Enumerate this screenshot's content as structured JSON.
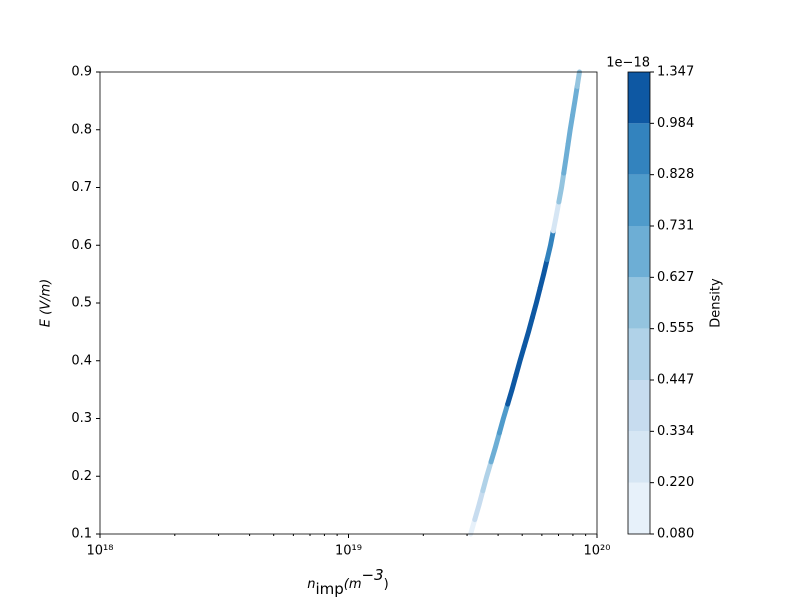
{
  "chart_data": {
    "type": "contour",
    "xlabel": [
      "n",
      "imp",
      "(m",
      "−3",
      ")"
    ],
    "ylabel": "E (V/m)",
    "xscale": "log",
    "xlim": [
      1e+18,
      1e+20
    ],
    "xticks": [
      {
        "value": 1e+18,
        "label": "10¹⁸"
      },
      {
        "value": 1e+19,
        "label": "10¹⁹"
      },
      {
        "value": 1e+20,
        "label": "10²⁰"
      }
    ],
    "ylim": [
      0.1,
      0.9
    ],
    "yticks": [
      0.1,
      0.2,
      0.3,
      0.4,
      0.5,
      0.6,
      0.7,
      0.8,
      0.9
    ],
    "x": [
      3.1e+19,
      3.35e+19,
      3.6e+19,
      3.9e+19,
      4.2e+19,
      4.55e+19,
      4.9e+19,
      5.3e+19,
      5.7e+19,
      6.1e+19,
      6.5e+19,
      6.85e+19,
      7.2e+19,
      7.5e+19,
      7.8e+19,
      8.15e+19,
      8.5e+19
    ],
    "y": [
      0.1,
      0.15,
      0.2,
      0.25,
      0.3,
      0.35,
      0.4,
      0.45,
      0.5,
      0.55,
      0.6,
      0.65,
      0.7,
      0.75,
      0.8,
      0.85,
      0.9
    ],
    "values": [
      0.2,
      0.35,
      0.5,
      0.7,
      0.8,
      1.0,
      1.2,
      1.3,
      1.3,
      1.3,
      0.9,
      0.3,
      0.6,
      0.7,
      0.7,
      0.65,
      0.6
    ],
    "colorbar": {
      "label": "Density",
      "multiplier": "1e−18",
      "levels": [
        {
          "value": 0.08,
          "label": "0.080"
        },
        {
          "value": 0.22,
          "label": "0.220"
        },
        0.334,
        0.447,
        0.555,
        0.627,
        0.731,
        0.828,
        0.984,
        1.347
      ],
      "colors": [
        "#e7f1fa",
        "#d6e6f4",
        "#c7dcef",
        "#b0d2e8",
        "#94c4df",
        "#6daed5",
        "#4f9bcb",
        "#3383be",
        "#0e58a3"
      ]
    }
  }
}
